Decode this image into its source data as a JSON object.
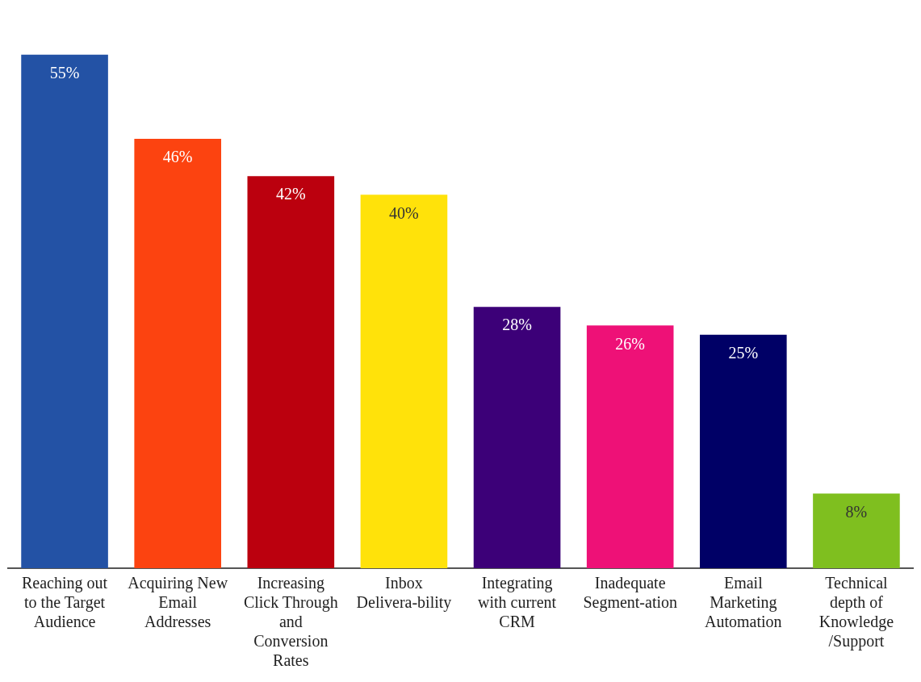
{
  "chart_data": {
    "type": "bar",
    "categories": [
      "Reaching out to the Target Audience",
      "Acquiring New Email Addresses",
      "Increasing Click Through and Conversion Rates",
      "Inbox Delivera-bility",
      "Integrating with current CRM",
      "Inadequate Segment-ation",
      "Email Marketing Automation",
      "Technical depth of Knowledge /Support"
    ],
    "values": [
      55,
      46,
      42,
      40,
      28,
      26,
      25,
      8
    ],
    "colors": [
      "#2352a5",
      "#fc4310",
      "#bb000e",
      "#ffe20a",
      "#3c0078",
      "#ee1177",
      "#000066",
      "#7fbf1f"
    ],
    "value_labels": [
      "55%",
      "46%",
      "42%",
      "40%",
      "28%",
      "26%",
      "25%",
      "8%"
    ],
    "grid": false,
    "legend": false
  }
}
